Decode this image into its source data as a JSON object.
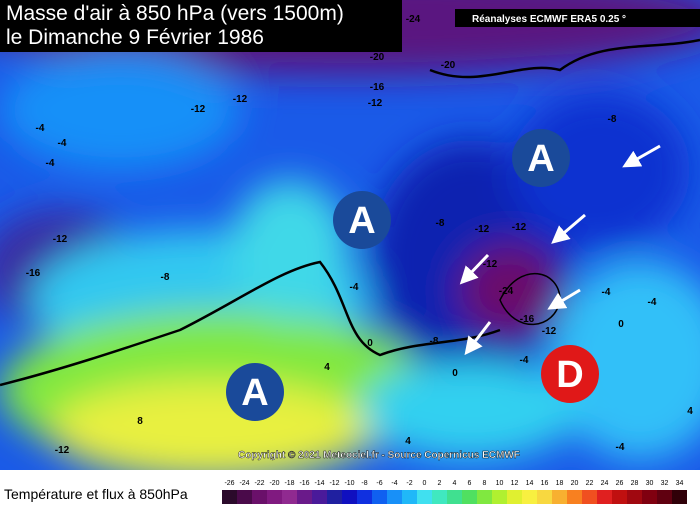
{
  "header": {
    "title": [
      "Masse d'air à 850 hPa (vers 1500m)",
      "le Dimanche 9 Février 1986"
    ],
    "source": "Réanalyses ECMWF ERA5 0.25 °"
  },
  "map": {
    "pressure_centers": [
      "A",
      "A",
      "A",
      "D"
    ],
    "contour_labels": [
      "-24",
      "-20",
      "-20",
      "-16",
      "-12",
      "-12",
      "-12",
      "-4",
      "-4",
      "-4",
      "-8",
      "-12",
      "-16",
      "-8",
      "-8",
      "-12",
      "-12",
      "-12",
      "-4",
      "-24",
      "-16",
      "-12",
      "-8",
      "-4",
      "-4",
      "-4",
      "0",
      "0",
      "0",
      "4",
      "8",
      "-12",
      "4",
      "-4",
      "4"
    ],
    "copyright": "Copyright © 2021 Meteociel.fr - Source Copernicus ECMWF"
  },
  "legend": {
    "title": "Température et flux à 850hPa",
    "ticks": [
      -26,
      -24,
      -22,
      -20,
      -18,
      -16,
      -14,
      -12,
      -10,
      -8,
      -6,
      -4,
      -2,
      0,
      2,
      4,
      6,
      8,
      10,
      12,
      14,
      16,
      18,
      20,
      22,
      24,
      26,
      28,
      30,
      32,
      34
    ],
    "colors": [
      "#2b0a2b",
      "#4a0a4a",
      "#6a106a",
      "#801a80",
      "#902a90",
      "#6a1a8a",
      "#4a1a9a",
      "#2020a0",
      "#1010c0",
      "#1030e0",
      "#1060f0",
      "#1890f8",
      "#20b8f8",
      "#40e0f0",
      "#40e8c0",
      "#40e090",
      "#50e060",
      "#80e840",
      "#b0f030",
      "#e0f030",
      "#f8f040",
      "#f8d840",
      "#f8b030",
      "#f88020",
      "#f05020",
      "#e02020",
      "#c01010",
      "#a00810",
      "#800010",
      "#600010",
      "#300008"
    ]
  }
}
